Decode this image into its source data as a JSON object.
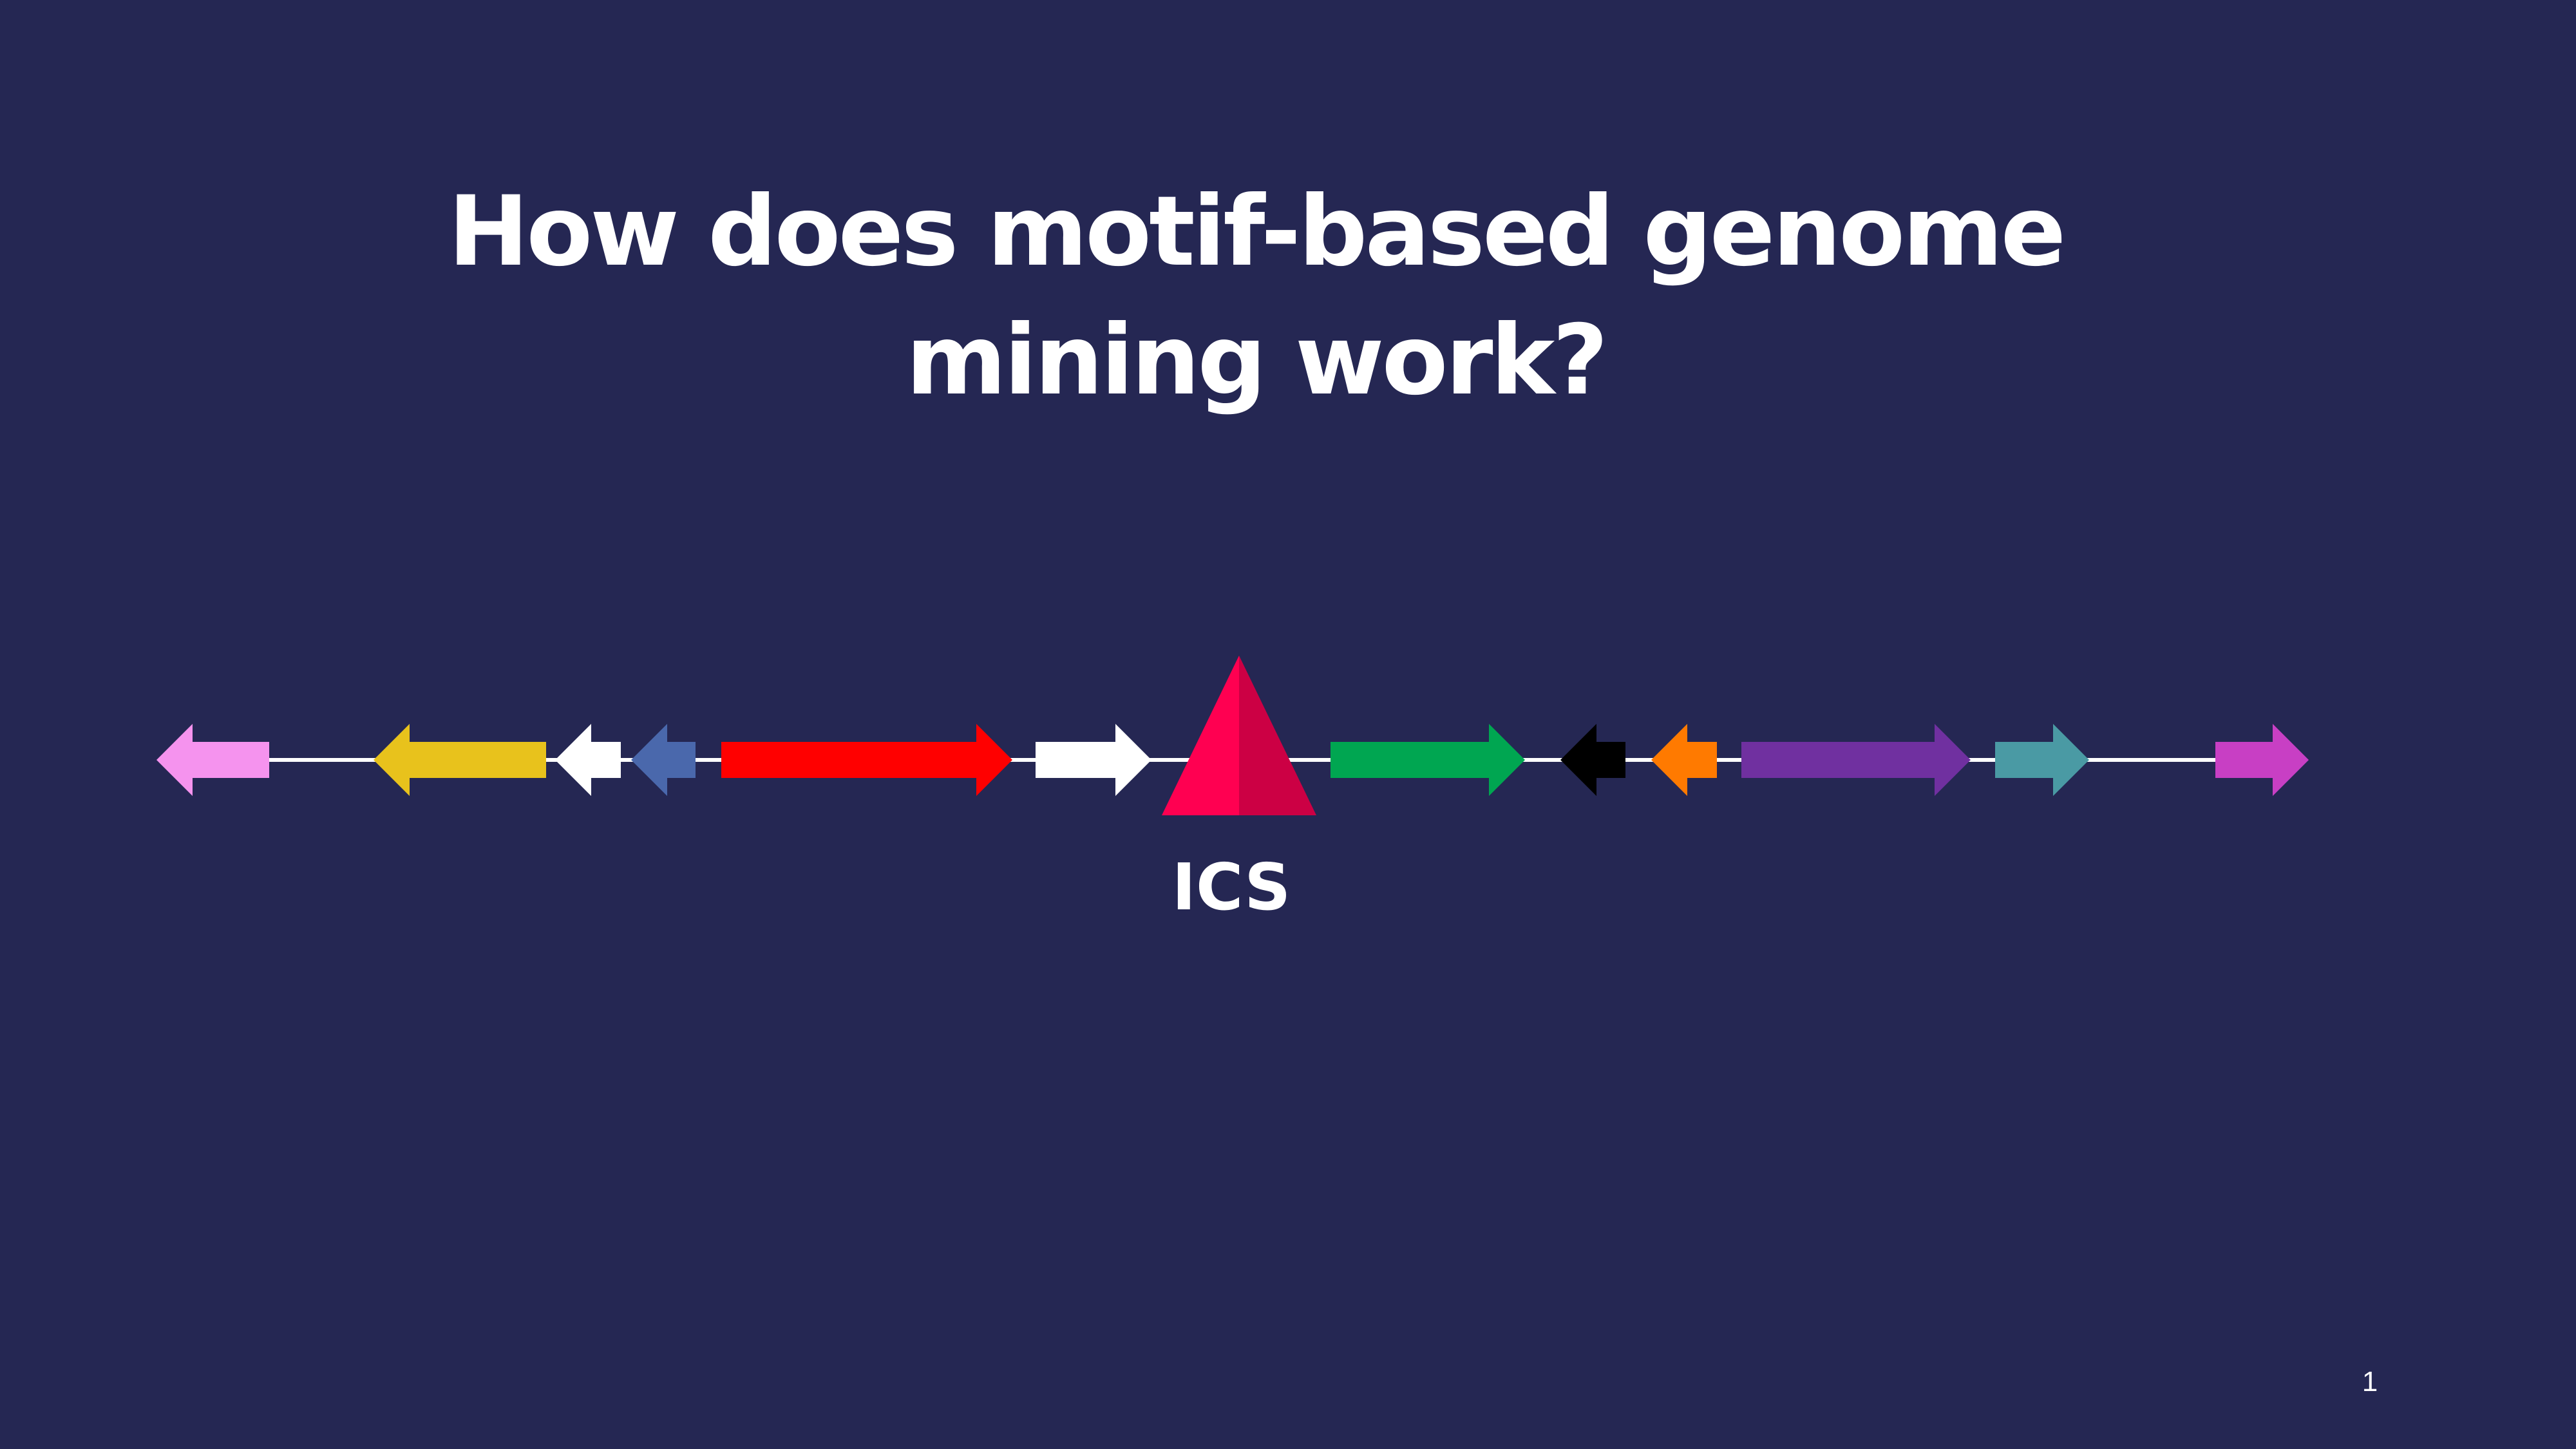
{
  "slide": {
    "background_color": "#252753",
    "title_lines": [
      "How does motif-based genome",
      "mining work?"
    ],
    "ics_label": "ICS",
    "page_number": "1"
  },
  "genome_diagram": {
    "backbone_color": "#ffffff",
    "genes": [
      {
        "name": "gene-pink",
        "direction": "left",
        "color": "#f593ee"
      },
      {
        "name": "gene-yellow",
        "direction": "left",
        "color": "#e8c21c"
      },
      {
        "name": "gene-white-left",
        "direction": "left",
        "color": "#ffffff"
      },
      {
        "name": "gene-blue",
        "direction": "left",
        "color": "#4a68ac"
      },
      {
        "name": "gene-red",
        "direction": "right",
        "color": "#ff0000"
      },
      {
        "name": "gene-white-right",
        "direction": "right",
        "color": "#ffffff"
      },
      {
        "name": "gene-green",
        "direction": "right",
        "color": "#00a651"
      },
      {
        "name": "gene-black",
        "direction": "left",
        "color": "#000000"
      },
      {
        "name": "gene-orange",
        "direction": "left",
        "color": "#ff7a00"
      },
      {
        "name": "gene-purple",
        "direction": "right",
        "color": "#7030a0"
      },
      {
        "name": "gene-teal",
        "direction": "right",
        "color": "#4a9aa4"
      },
      {
        "name": "gene-magenta",
        "direction": "right",
        "color": "#c83fc4"
      }
    ],
    "ics_marker": {
      "light_color": "#ff0051",
      "dark_color": "#cc0044"
    }
  }
}
